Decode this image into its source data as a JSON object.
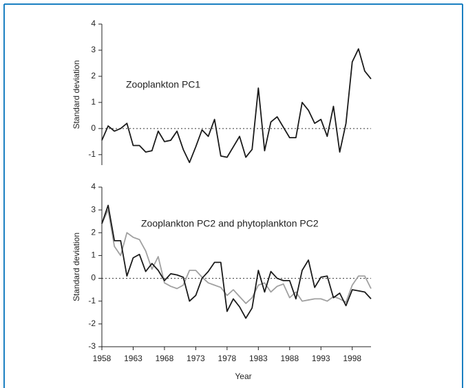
{
  "chart_data": [
    {
      "type": "line",
      "ylabel": "Standard deviation",
      "annotation": "Zooplankton PC1",
      "x": [
        1958,
        1959,
        1960,
        1961,
        1962,
        1963,
        1964,
        1965,
        1966,
        1967,
        1968,
        1969,
        1970,
        1971,
        1972,
        1973,
        1974,
        1975,
        1976,
        1977,
        1978,
        1979,
        1980,
        1981,
        1982,
        1983,
        1984,
        1985,
        1986,
        1987,
        1988,
        1989,
        1990,
        1991,
        1992,
        1993,
        1994,
        1995,
        1996,
        1997,
        1998,
        1999,
        2000,
        2001
      ],
      "series": [
        {
          "color": "#1a1a1a",
          "values": [
            -0.45,
            0.1,
            -0.1,
            0.0,
            0.2,
            -0.65,
            -0.65,
            -0.9,
            -0.85,
            -0.1,
            -0.5,
            -0.45,
            -0.1,
            -0.8,
            -1.3,
            -0.7,
            -0.05,
            -0.3,
            0.35,
            -1.05,
            -1.1,
            -0.7,
            -0.3,
            -1.1,
            -0.8,
            1.55,
            -0.85,
            0.25,
            0.45,
            0.05,
            -0.35,
            -0.35,
            1.0,
            0.7,
            0.2,
            0.35,
            -0.3,
            0.85,
            -0.9,
            0.2,
            2.55,
            3.05,
            2.2,
            1.9
          ]
        }
      ],
      "xlim": [
        1958,
        2001
      ],
      "ylim": [
        -1.4,
        4
      ],
      "yticks": [
        -1,
        0,
        1,
        2,
        3,
        4
      ],
      "hline": 0
    },
    {
      "type": "line",
      "ylabel": "Standard deviation",
      "annotation": "Zooplankton PC2 and phytoplankton PC2",
      "xlabel": "Year",
      "x": [
        1958,
        1959,
        1960,
        1961,
        1962,
        1963,
        1964,
        1965,
        1966,
        1967,
        1968,
        1969,
        1970,
        1971,
        1972,
        1973,
        1974,
        1975,
        1976,
        1977,
        1978,
        1979,
        1980,
        1981,
        1982,
        1983,
        1984,
        1985,
        1986,
        1987,
        1988,
        1989,
        1990,
        1991,
        1992,
        1993,
        1994,
        1995,
        1996,
        1997,
        1998,
        1999,
        2000,
        2001
      ],
      "series": [
        {
          "color": "#a0a0a0",
          "values": [
            2.4,
            3.0,
            1.4,
            1.0,
            2.0,
            1.8,
            1.7,
            1.2,
            0.4,
            0.95,
            -0.2,
            -0.35,
            -0.45,
            -0.3,
            0.35,
            0.35,
            0.05,
            -0.2,
            -0.3,
            -0.4,
            -0.75,
            -0.5,
            -0.8,
            -1.1,
            -0.85,
            -0.3,
            -0.2,
            -0.6,
            -0.35,
            -0.25,
            -0.85,
            -0.6,
            -1.0,
            -0.95,
            -0.9,
            -0.9,
            -1.0,
            -0.8,
            -0.9,
            -1.05,
            -0.3,
            0.1,
            0.1,
            -0.45
          ]
        },
        {
          "color": "#1a1a1a",
          "values": [
            2.4,
            3.2,
            1.65,
            1.65,
            0.1,
            0.9,
            1.05,
            0.3,
            0.65,
            0.35,
            -0.1,
            0.2,
            0.15,
            0.05,
            -1.0,
            -0.75,
            0.0,
            0.3,
            0.7,
            0.7,
            -1.45,
            -0.9,
            -1.25,
            -1.75,
            -1.3,
            0.35,
            -0.6,
            0.3,
            0.0,
            -0.1,
            -0.1,
            -0.9,
            0.35,
            0.8,
            -0.4,
            0.05,
            0.1,
            -0.85,
            -0.65,
            -1.2,
            -0.5,
            -0.55,
            -0.6,
            -0.9
          ]
        }
      ],
      "xlim": [
        1958,
        2001
      ],
      "ylim": [
        -3,
        4
      ],
      "yticks": [
        -3,
        -2,
        -1,
        0,
        1,
        2,
        3,
        4
      ],
      "xticks": [
        1958,
        1963,
        1968,
        1973,
        1978,
        1983,
        1988,
        1993,
        1998
      ],
      "hline": 0
    }
  ]
}
